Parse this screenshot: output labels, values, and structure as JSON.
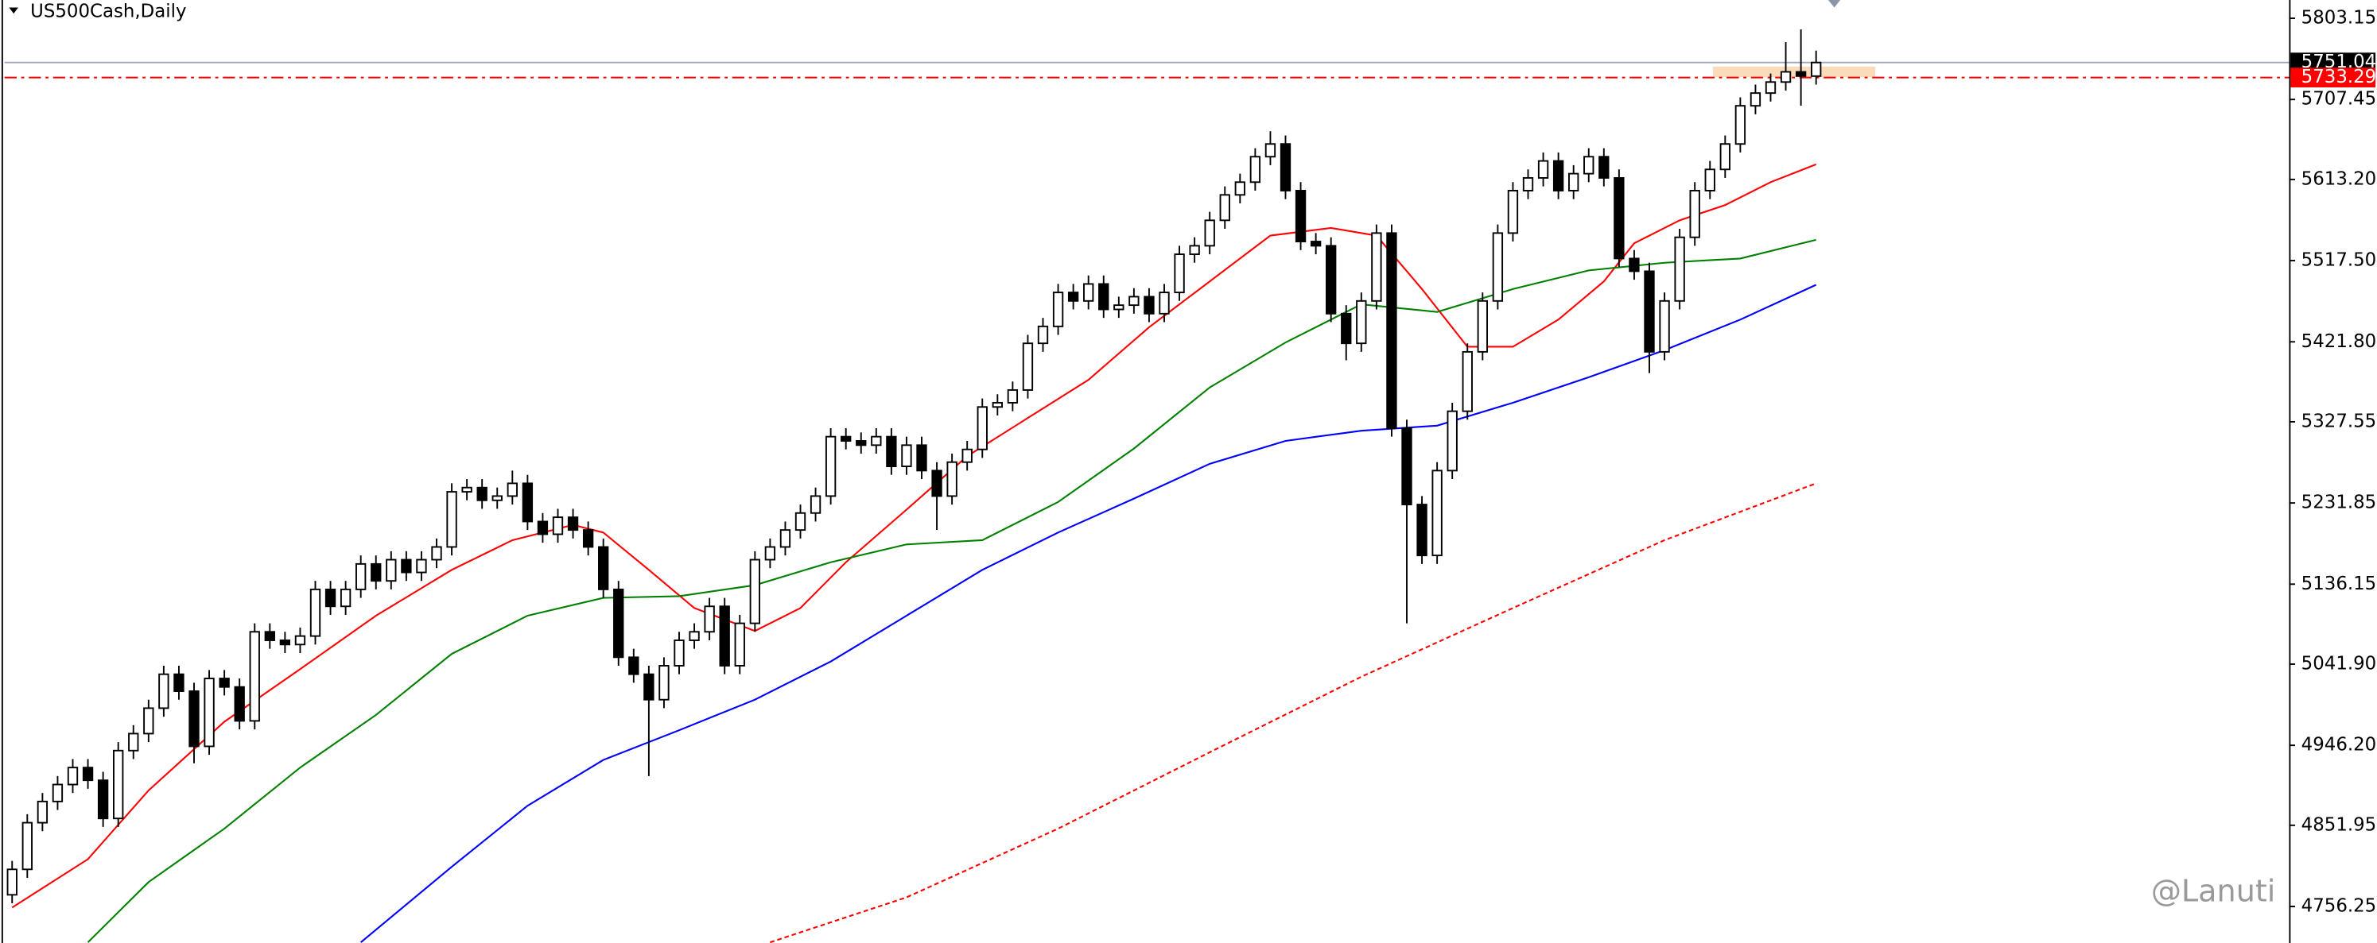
{
  "chart_data": {
    "type": "candlestick",
    "title": "US500Cash,Daily",
    "watermark": "@Lanuti",
    "ylim": [
      4713.2,
      5824.7
    ],
    "yticks": [
      5803.15,
      5707.45,
      {
        "value": 5613.2,
        "label": "5613.20"
      },
      {
        "value": 5517.5,
        "label": "5517.50"
      },
      {
        "value": 5421.8,
        "label": "5421.80"
      },
      5327.55,
      5231.85,
      5136.15,
      {
        "value": 5041.9,
        "label": "5041.90"
      },
      {
        "value": 4946.2,
        "label": "4946.20"
      },
      4851.95,
      4756.25
    ],
    "candles": {
      "open": [
        4770,
        4800,
        4855,
        4880,
        4900,
        4920,
        4905,
        4860,
        4940,
        4960,
        4990,
        5030,
        5010,
        4945,
        5025,
        5015,
        4975,
        5080,
        5070,
        5065,
        5075,
        5130,
        5110,
        5130,
        5160,
        5140,
        5165,
        5150,
        5165,
        5180,
        5245,
        5250,
        5235,
        5240,
        5255,
        5210,
        5195,
        5215,
        5200,
        5180,
        5130,
        5050,
        5030,
        5000,
        5040,
        5070,
        5080,
        5110,
        5040,
        5090,
        5165,
        5180,
        5200,
        5220,
        5240,
        5310,
        5305,
        5300,
        5310,
        5275,
        5300,
        5270,
        5240,
        5280,
        5295,
        5345,
        5350,
        5365,
        5420,
        5440,
        5480,
        5470,
        5490,
        5460,
        5465,
        5475,
        5455,
        5480,
        5525,
        5535,
        5565,
        5595,
        5610,
        5640,
        5655,
        5600,
        5540,
        5535,
        5455,
        5420,
        5470,
        5550,
        5320,
        5230,
        5170,
        5270,
        5340,
        5410,
        5470,
        5550,
        5600,
        5615,
        5635,
        5600,
        5620,
        5640,
        5615,
        5520,
        5505,
        5410,
        5470,
        5545,
        5600,
        5625,
        5655,
        5700,
        5715,
        5728,
        5740,
        5735
      ],
      "high": [
        4810,
        4865,
        4890,
        4910,
        4930,
        4930,
        4915,
        4950,
        4970,
        5000,
        5040,
        5040,
        5020,
        5035,
        5035,
        5025,
        5090,
        5090,
        5080,
        5085,
        5140,
        5140,
        5140,
        5170,
        5170,
        5175,
        5175,
        5175,
        5190,
        5255,
        5260,
        5260,
        5250,
        5270,
        5265,
        5220,
        5225,
        5225,
        5210,
        5190,
        5140,
        5060,
        5040,
        5050,
        5080,
        5090,
        5120,
        5120,
        5100,
        5175,
        5190,
        5210,
        5230,
        5250,
        5320,
        5320,
        5315,
        5320,
        5320,
        5310,
        5310,
        5280,
        5290,
        5305,
        5355,
        5360,
        5375,
        5430,
        5450,
        5490,
        5490,
        5500,
        5500,
        5475,
        5485,
        5485,
        5490,
        5535,
        5545,
        5575,
        5605,
        5620,
        5650,
        5670,
        5665,
        5610,
        5550,
        5545,
        5465,
        5480,
        5560,
        5560,
        5330,
        5240,
        5280,
        5350,
        5420,
        5480,
        5560,
        5610,
        5625,
        5645,
        5645,
        5630,
        5650,
        5650,
        5625,
        5530,
        5515,
        5480,
        5555,
        5610,
        5635,
        5665,
        5710,
        5725,
        5738,
        5775,
        5790,
        5765
      ],
      "low": [
        4760,
        4790,
        4845,
        4870,
        4890,
        4895,
        4850,
        4850,
        4930,
        4950,
        4980,
        5000,
        4925,
        4935,
        5005,
        4965,
        4965,
        5060,
        5055,
        5055,
        5065,
        5100,
        5100,
        5120,
        5130,
        5130,
        5140,
        5140,
        5155,
        5170,
        5235,
        5225,
        5225,
        5230,
        5200,
        5185,
        5185,
        5190,
        5170,
        5120,
        5040,
        5020,
        4910,
        4990,
        5030,
        5060,
        5070,
        5030,
        5030,
        5080,
        5155,
        5170,
        5190,
        5210,
        5230,
        5295,
        5290,
        5290,
        5265,
        5265,
        5260,
        5200,
        5230,
        5270,
        5285,
        5335,
        5340,
        5355,
        5410,
        5430,
        5460,
        5460,
        5450,
        5450,
        5455,
        5445,
        5445,
        5470,
        5515,
        5525,
        5555,
        5585,
        5600,
        5630,
        5590,
        5530,
        5525,
        5445,
        5400,
        5410,
        5460,
        5310,
        5090,
        5160,
        5160,
        5260,
        5330,
        5400,
        5460,
        5540,
        5590,
        5605,
        5590,
        5590,
        5610,
        5605,
        5510,
        5495,
        5385,
        5400,
        5460,
        5535,
        5590,
        5615,
        5645,
        5690,
        5705,
        5718,
        5700,
        5725
      ],
      "close": [
        4800,
        4855,
        4880,
        4900,
        4920,
        4905,
        4860,
        4940,
        4960,
        4990,
        5030,
        5010,
        4945,
        5025,
        5015,
        4975,
        5080,
        5070,
        5065,
        5075,
        5130,
        5110,
        5130,
        5160,
        5140,
        5165,
        5150,
        5165,
        5180,
        5245,
        5250,
        5235,
        5240,
        5255,
        5210,
        5195,
        5215,
        5200,
        5180,
        5130,
        5050,
        5030,
        5000,
        5040,
        5070,
        5080,
        5110,
        5040,
        5090,
        5165,
        5180,
        5200,
        5220,
        5240,
        5310,
        5305,
        5300,
        5310,
        5275,
        5300,
        5270,
        5240,
        5280,
        5295,
        5345,
        5350,
        5365,
        5420,
        5440,
        5480,
        5470,
        5490,
        5460,
        5465,
        5475,
        5455,
        5480,
        5525,
        5535,
        5565,
        5595,
        5610,
        5640,
        5655,
        5600,
        5540,
        5535,
        5455,
        5420,
        5470,
        5550,
        5320,
        5230,
        5170,
        5270,
        5340,
        5410,
        5470,
        5550,
        5600,
        5615,
        5635,
        5600,
        5620,
        5640,
        5615,
        5520,
        5505,
        5410,
        5470,
        5545,
        5600,
        5625,
        5655,
        5700,
        5715,
        5728,
        5740,
        5735,
        5751
      ]
    },
    "moving_averages": [
      {
        "color": "#ff0000",
        "dash": false,
        "x": [
          0,
          5,
          9,
          14,
          19,
          24,
          29,
          33,
          37,
          39,
          42,
          45,
          49,
          52,
          55,
          59,
          63,
          67,
          71,
          75,
          79,
          83,
          87,
          90,
          93,
          96,
          99,
          102,
          105,
          107,
          110,
          113,
          116,
          119
        ],
        "values": [
          4755,
          4812,
          4893,
          4974,
          5036,
          5099,
          5153,
          5188,
          5206,
          5197,
          5153,
          5108,
          5081,
          5108,
          5162,
          5224,
          5287,
          5332,
          5377,
          5439,
          5493,
          5547,
          5556,
          5547,
          5484,
          5416,
          5416,
          5448,
          5493,
          5538,
          5565,
          5583,
          5610,
          5631
        ]
      },
      {
        "color": "#008000",
        "dash": false,
        "x": [
          5,
          9,
          14,
          19,
          24,
          29,
          34,
          39,
          44,
          49,
          54,
          59,
          64,
          69,
          74,
          79,
          84,
          89,
          94,
          99,
          104,
          109,
          114,
          119
        ],
        "values": [
          4714,
          4785,
          4848,
          4920,
          4982,
          5054,
          5099,
          5120,
          5122,
          5135,
          5162,
          5183,
          5188,
          5233,
          5296,
          5368,
          5421,
          5466,
          5457,
          5484,
          5506,
          5515,
          5520,
          5542
        ]
      },
      {
        "color": "#0000ff",
        "dash": false,
        "x": [
          23,
          29,
          34,
          39,
          44,
          49,
          54,
          59,
          64,
          69,
          74,
          79,
          84,
          89,
          94,
          99,
          104,
          109,
          114,
          119
        ],
        "values": [
          4714,
          4803,
          4875,
          4929,
          4964,
          5000,
          5045,
          5099,
          5153,
          5197,
          5237,
          5278,
          5305,
          5317,
          5323,
          5350,
          5380,
          5412,
          5448,
          5489
        ]
      },
      {
        "color": "#ff0000",
        "dash": true,
        "x": [
          50,
          59,
          69,
          79,
          89,
          99,
          109,
          119
        ],
        "values": [
          4714,
          4767,
          4848,
          4938,
          5027,
          5108,
          5188,
          5255
        ]
      }
    ],
    "price_lines": [
      {
        "value": 5751.04,
        "color": "#000000",
        "line_color": "#a0a8b4",
        "style": "solid"
      },
      {
        "value": 5733.29,
        "color": "#ff0000",
        "line_color": "#ff0000",
        "style": "dashdot"
      }
    ]
  }
}
